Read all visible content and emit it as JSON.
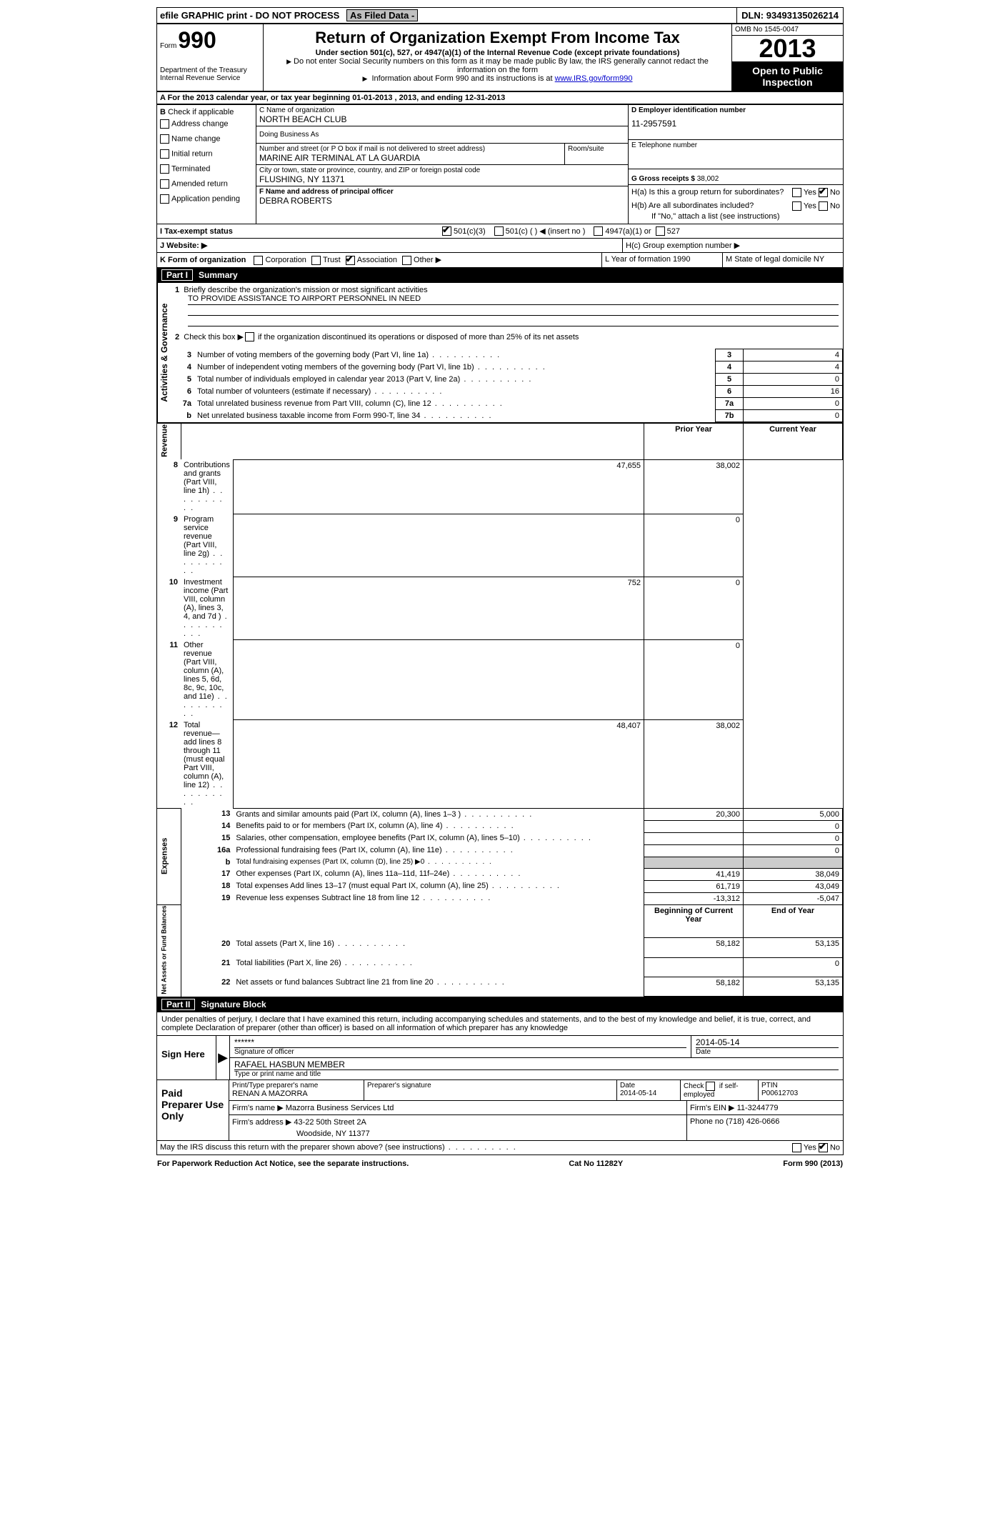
{
  "topbar": {
    "efile": "efile GRAPHIC print - DO NOT PROCESS",
    "asfiled": "As Filed Data -",
    "dln_label": "DLN:",
    "dln": "93493135026214"
  },
  "header": {
    "form_label": "Form",
    "form_no": "990",
    "dept1": "Department of the Treasury",
    "dept2": "Internal Revenue Service",
    "title": "Return of Organization Exempt From Income Tax",
    "sub": "Under section 501(c), 527, or 4947(a)(1) of the Internal Revenue Code (except private foundations)",
    "note1": "Do not enter Social Security numbers on this form as it may be made public  By law, the IRS generally cannot redact the information on the form",
    "note2_pre": "Information about Form 990 and its instructions is at ",
    "note2_link": "www.IRS.gov/form990",
    "omb": "OMB No  1545-0047",
    "year": "2013",
    "open1": "Open to Public",
    "open2": "Inspection"
  },
  "line_a": "A  For the 2013 calendar year, or tax year beginning 01-01-2013    , 2013, and ending 12-31-2013",
  "box_b": {
    "title": "B",
    "check_label": "Check if applicable",
    "items": [
      "Address change",
      "Name change",
      "Initial return",
      "Terminated",
      "Amended return",
      "Application pending"
    ]
  },
  "box_c": {
    "label": "C Name of organization",
    "name": "NORTH BEACH CLUB",
    "dba": "Doing Business As",
    "street_label": "Number and street (or P O  box if mail is not delivered to street address)",
    "room_label": "Room/suite",
    "street": "MARINE AIR TERMINAL AT LA GUARDIA",
    "city_label": "City or town, state or province, country, and ZIP or foreign postal code",
    "city": "FLUSHING, NY  11371"
  },
  "box_d": {
    "label": "D Employer identification number",
    "ein": "11-2957591"
  },
  "box_e": {
    "label": "E Telephone number"
  },
  "box_g": {
    "label": "G Gross receipts $",
    "val": "38,002"
  },
  "box_f": {
    "label": "F   Name and address of principal officer",
    "name": "DEBRA ROBERTS"
  },
  "box_h": {
    "ha": "H(a)  Is this a group return for subordinates?",
    "hb": "H(b)  Are all subordinates included?",
    "hb_note": "If \"No,\" attach a list  (see instructions)",
    "hc": "H(c)   Group exemption number ▶",
    "yes": "Yes",
    "no": "No"
  },
  "line_i": {
    "label": "I   Tax-exempt status",
    "opt1": "501(c)(3)",
    "opt2": "501(c) (   ) ◀ (insert no )",
    "opt3": "4947(a)(1) or",
    "opt4": "527"
  },
  "line_j": {
    "label": "J   Website: ▶"
  },
  "line_k": {
    "label": "K Form of organization",
    "opts": [
      "Corporation",
      "Trust",
      "Association",
      "Other ▶"
    ],
    "checked": 2,
    "l": "L Year of formation  1990",
    "m": "M State of legal domicile  NY"
  },
  "part1": {
    "title": "Part I",
    "heading": "Summary",
    "side_ag": "Activities & Governance",
    "side_rev": "Revenue",
    "side_exp": "Expenses",
    "side_na": "Net Assets or Fund Balances",
    "l1": "Briefly describe the organization's mission or most significant activities",
    "l1_text": "TO PROVIDE ASSISTANCE TO AIRPORT PERSONNEL IN NEED",
    "l2": "Check this box ▶      if the organization discontinued its operations or disposed of more than 25% of its net assets",
    "rows_gov": [
      {
        "n": "3",
        "d": "Number of voting members of the governing body (Part VI, line 1a)",
        "k": "3",
        "v": "4"
      },
      {
        "n": "4",
        "d": "Number of independent voting members of the governing body (Part VI, line 1b)",
        "k": "4",
        "v": "4"
      },
      {
        "n": "5",
        "d": "Total number of individuals employed in calendar year 2013 (Part V, line 2a)",
        "k": "5",
        "v": "0"
      },
      {
        "n": "6",
        "d": "Total number of volunteers (estimate if necessary)",
        "k": "6",
        "v": "16"
      },
      {
        "n": "7a",
        "d": "Total unrelated business revenue from Part VIII, column (C), line 12",
        "k": "7a",
        "v": "0"
      },
      {
        "n": "b",
        "d": "Net unrelated business taxable income from Form 990-T, line 34",
        "k": "7b",
        "v": "0"
      }
    ],
    "col_py": "Prior Year",
    "col_cy": "Current Year",
    "rows_rev": [
      {
        "n": "8",
        "d": "Contributions and grants (Part VIII, line 1h)",
        "py": "47,655",
        "cy": "38,002"
      },
      {
        "n": "9",
        "d": "Program service revenue (Part VIII, line 2g)",
        "py": "",
        "cy": "0"
      },
      {
        "n": "10",
        "d": "Investment income (Part VIII, column (A), lines 3, 4, and 7d )",
        "py": "752",
        "cy": "0"
      },
      {
        "n": "11",
        "d": "Other revenue (Part VIII, column (A), lines 5, 6d, 8c, 9c, 10c, and 11e)",
        "py": "",
        "cy": "0"
      },
      {
        "n": "12",
        "d": "Total revenue—add lines 8 through 11 (must equal Part VIII, column (A), line 12)",
        "py": "48,407",
        "cy": "38,002"
      }
    ],
    "rows_exp": [
      {
        "n": "13",
        "d": "Grants and similar amounts paid (Part IX, column (A), lines 1–3 )",
        "py": "20,300",
        "cy": "5,000"
      },
      {
        "n": "14",
        "d": "Benefits paid to or for members (Part IX, column (A), line 4)",
        "py": "",
        "cy": "0"
      },
      {
        "n": "15",
        "d": "Salaries, other compensation, employee benefits (Part IX, column (A), lines 5–10)",
        "py": "",
        "cy": "0"
      },
      {
        "n": "16a",
        "d": "Professional fundraising fees (Part IX, column (A), line 11e)",
        "py": "",
        "cy": "0"
      },
      {
        "n": "b",
        "d": "Total fundraising expenses (Part IX, column (D), line 25) ▶0",
        "py": "—",
        "cy": "—"
      },
      {
        "n": "17",
        "d": "Other expenses (Part IX, column (A), lines 11a–11d, 11f–24e)",
        "py": "41,419",
        "cy": "38,049"
      },
      {
        "n": "18",
        "d": "Total expenses  Add lines 13–17 (must equal Part IX, column (A), line 25)",
        "py": "61,719",
        "cy": "43,049"
      },
      {
        "n": "19",
        "d": "Revenue less expenses  Subtract line 18 from line 12",
        "py": "-13,312",
        "cy": "-5,047"
      }
    ],
    "col_boy": "Beginning of Current Year",
    "col_eoy": "End of Year",
    "rows_na": [
      {
        "n": "20",
        "d": "Total assets (Part X, line 16)",
        "py": "58,182",
        "cy": "53,135"
      },
      {
        "n": "21",
        "d": "Total liabilities (Part X, line 26)",
        "py": "",
        "cy": "0"
      },
      {
        "n": "22",
        "d": "Net assets or fund balances  Subtract line 21 from line 20",
        "py": "58,182",
        "cy": "53,135"
      }
    ]
  },
  "part2": {
    "title": "Part II",
    "heading": "Signature Block",
    "perjury": "Under penalties of perjury, I declare that I have examined this return, including accompanying schedules and statements, and to the best of my knowledge and belief, it is true, correct, and complete  Declaration of preparer (other than officer) is based on all information of which preparer has any knowledge",
    "sign_here": "Sign Here",
    "sig_stars": "******",
    "sig_label": "Signature of officer",
    "date_label": "Date",
    "sig_date": "2014-05-14",
    "officer": "RAFAEL HASBUN MEMBER",
    "officer_label": "Type or print name and title",
    "paid": "Paid Preparer Use Only",
    "prep_name_label": "Print/Type preparer's name",
    "prep_name": "RENAN A MAZORRA",
    "prep_sig_label": "Preparer's signature",
    "prep_date": "2014-05-14",
    "self_emp": "Check        if self-employed",
    "ptin_label": "PTIN",
    "ptin": "P00612703",
    "firm_name_label": "Firm's name     ▶",
    "firm_name": "Mazorra Business Services Ltd",
    "firm_ein_label": "Firm's EIN ▶",
    "firm_ein": "11-3244779",
    "firm_addr_label": "Firm's address ▶",
    "firm_addr1": "43-22 50th Street 2A",
    "firm_addr2": "Woodside, NY  11377",
    "phone_label": "Phone no",
    "phone": "(718) 426-0666",
    "discuss": "May the IRS discuss this return with the preparer shown above? (see instructions)"
  },
  "footer": {
    "pra": "For Paperwork Reduction Act Notice, see the separate instructions.",
    "cat": "Cat  No  11282Y",
    "form": "Form 990 (2013)"
  }
}
